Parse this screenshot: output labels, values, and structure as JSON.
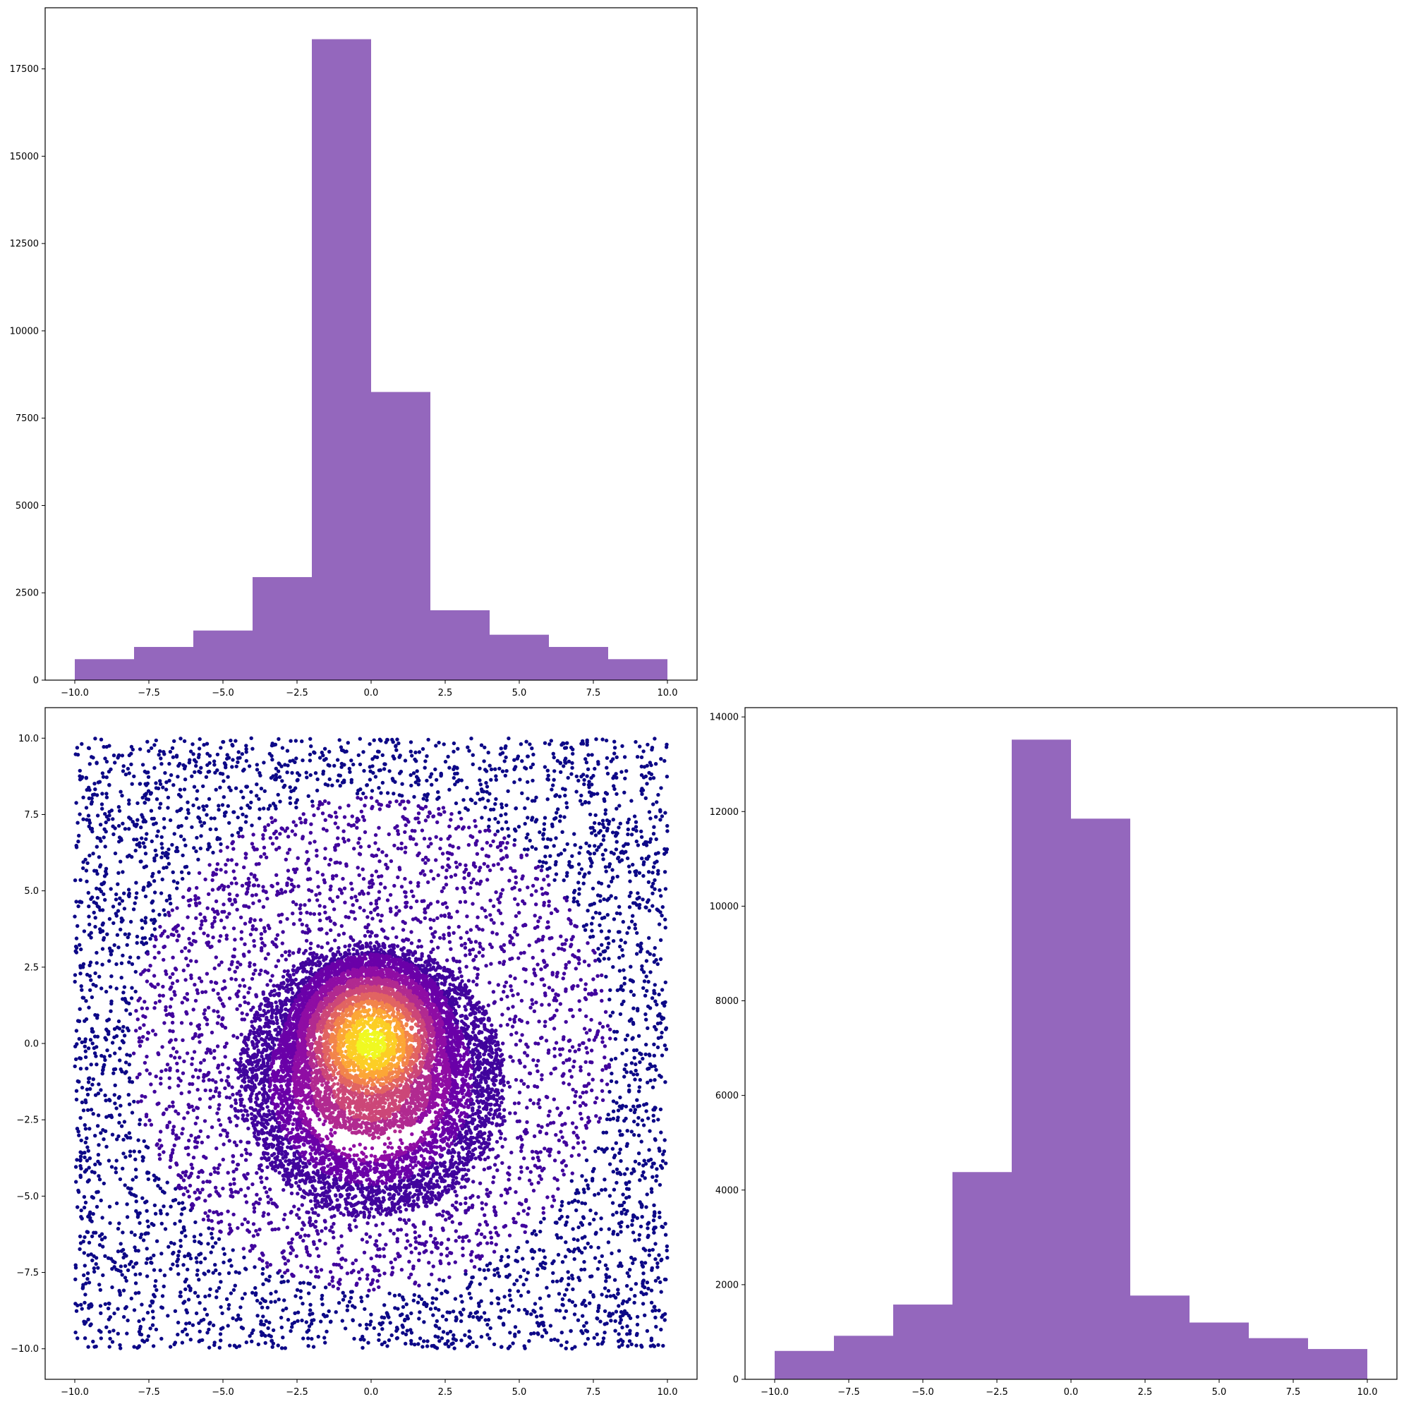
{
  "figure": {
    "layout": "2x2 grid, top-right panel empty"
  },
  "chart_data": [
    {
      "panel": "top-left",
      "type": "bar",
      "style": "histogram",
      "color": "#9467bd",
      "bin_edges": [
        -10,
        -8,
        -6,
        -4,
        -2,
        0,
        2,
        4,
        6,
        8,
        10
      ],
      "values": [
        600,
        950,
        1420,
        2950,
        18350,
        8250,
        2000,
        1300,
        950,
        600
      ],
      "xlim": [
        -11,
        11
      ],
      "ylim": [
        0,
        19250
      ],
      "xticks": [
        -10,
        -7.5,
        -5,
        -2.5,
        0,
        2.5,
        5,
        7.5,
        10
      ],
      "xtick_labels": [
        "−10.0",
        "−7.5",
        "−5.0",
        "−2.5",
        "0.0",
        "2.5",
        "5.0",
        "7.5",
        "10.0"
      ],
      "yticks": [
        0,
        2500,
        5000,
        7500,
        10000,
        12500,
        15000,
        17500
      ],
      "ytick_labels": [
        "0",
        "2500",
        "5000",
        "7500",
        "10000",
        "12500",
        "15000",
        "17500"
      ],
      "grid": false,
      "title": "",
      "xlabel": "",
      "ylabel": ""
    },
    {
      "panel": "bottom-left",
      "type": "scatter",
      "colormap": "plasma",
      "color_encoding": "point density (bright yellow at center, dark blue at edges)",
      "marker_color_dense": "#f0f921",
      "marker_color_sparse": "#1b068d",
      "distribution": {
        "uniform_background": {
          "x_range": [
            -10,
            10
          ],
          "y_range": [
            -10,
            10
          ]
        },
        "central_cluster": {
          "center": [
            0,
            0
          ],
          "radius": 3
        },
        "ring_cluster": {
          "center": [
            0,
            -1.2
          ],
          "inner_radius": 2.5,
          "outer_radius": 4.5
        }
      },
      "xlim": [
        -11,
        11
      ],
      "ylim": [
        -11,
        11
      ],
      "xticks": [
        -10,
        -7.5,
        -5,
        -2.5,
        0,
        2.5,
        5,
        7.5,
        10
      ],
      "xtick_labels": [
        "−10.0",
        "−7.5",
        "−5.0",
        "−2.5",
        "0.0",
        "2.5",
        "5.0",
        "7.5",
        "10.0"
      ],
      "yticks": [
        -10,
        -7.5,
        -5,
        -2.5,
        0,
        2.5,
        5,
        7.5,
        10
      ],
      "ytick_labels": [
        "−10.0",
        "−7.5",
        "−5.0",
        "−2.5",
        "0.0",
        "2.5",
        "5.0",
        "7.5",
        "10.0"
      ],
      "grid": false,
      "title": "",
      "xlabel": "",
      "ylabel": ""
    },
    {
      "panel": "bottom-right",
      "type": "bar",
      "style": "histogram",
      "color": "#9467bd",
      "bin_edges": [
        -10,
        -8,
        -6,
        -4,
        -2,
        0,
        2,
        4,
        6,
        8,
        10
      ],
      "values": [
        600,
        920,
        1580,
        4380,
        13520,
        11850,
        1770,
        1200,
        870,
        640
      ],
      "xlim": [
        -11,
        11
      ],
      "ylim": [
        0,
        14196
      ],
      "xticks": [
        -10,
        -7.5,
        -5,
        -2.5,
        0,
        2.5,
        5,
        7.5,
        10
      ],
      "xtick_labels": [
        "−10.0",
        "−7.5",
        "−5.0",
        "−2.5",
        "0.0",
        "2.5",
        "5.0",
        "7.5",
        "10.0"
      ],
      "yticks": [
        0,
        2000,
        4000,
        6000,
        8000,
        10000,
        12000,
        14000
      ],
      "ytick_labels": [
        "0",
        "2000",
        "4000",
        "6000",
        "8000",
        "10000",
        "12000",
        "14000"
      ],
      "grid": false,
      "title": "",
      "xlabel": "",
      "ylabel": ""
    }
  ]
}
